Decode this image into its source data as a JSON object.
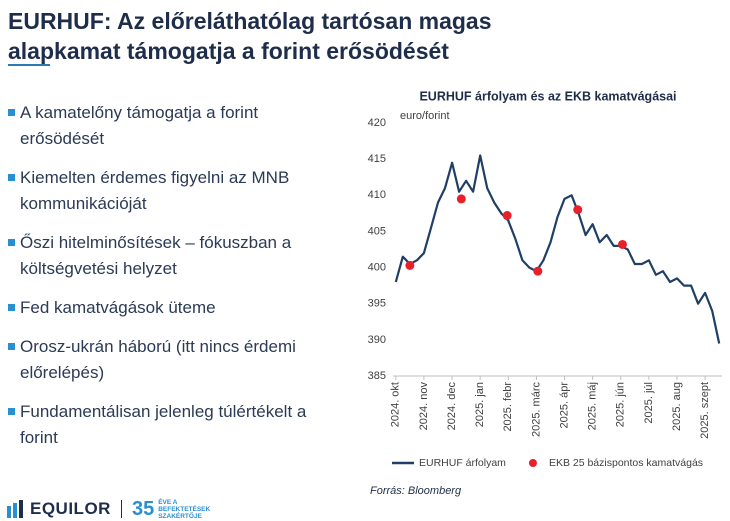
{
  "slide": {
    "title": "EURHUF: Az előreláthatólag tartósan magas alapkamat támogatja a forint erősödését",
    "bullets": [
      "A kamatelőny támogatja a forint erősödését",
      "Kiemelten érdemes figyelni az MNB kommunikációját",
      "Őszi hitelminősítések – fókuszban a költségvetési helyzet",
      "Fed kamatvágások üteme",
      "Orosz-ukrán háború (itt nincs érdemi előrelépés)",
      "Fundamentálisan jelenleg túlértékelt a forint"
    ],
    "logo": {
      "name": "EQUILOR",
      "years": "35",
      "tagline": "ÉVE A BEFEKTETÉSEK SZAKÉRTŐJE"
    }
  },
  "chart_data": {
    "type": "line",
    "title": "EURHUF árfolyam és az EKB kamatvágásai",
    "y_label": "euro/forint",
    "source": "Forrás: Bloomberg",
    "legend": "bottom",
    "grid": false,
    "xlim": [
      -0.1,
      11.6
    ],
    "xticks": [
      {
        "value": 0,
        "label": "2024. okt"
      },
      {
        "value": 1,
        "label": "2024. nov"
      },
      {
        "value": 2,
        "label": "2024. dec"
      },
      {
        "value": 3,
        "label": "2025. jan"
      },
      {
        "value": 4,
        "label": "2025. febr"
      },
      {
        "value": 5,
        "label": "2025. márc"
      },
      {
        "value": 6,
        "label": "2025. ápr"
      },
      {
        "value": 7,
        "label": "2025. máj"
      },
      {
        "value": 8,
        "label": "2025. jún"
      },
      {
        "value": 9,
        "label": "2025. júl"
      },
      {
        "value": 10,
        "label": "2025. aug"
      },
      {
        "value": 11,
        "label": "2025. szept"
      }
    ],
    "ylim": [
      385,
      420
    ],
    "yticks": [
      385,
      390,
      395,
      400,
      405,
      410,
      415,
      420
    ],
    "series": [
      {
        "name": "EURHUF árfolyam",
        "color": "#1f3f66",
        "type": "line",
        "x": [
          0,
          0.25,
          0.5,
          0.75,
          1,
          1.25,
          1.5,
          1.75,
          2,
          2.25,
          2.5,
          2.75,
          3,
          3.25,
          3.5,
          3.75,
          4,
          4.25,
          4.5,
          4.75,
          5,
          5.25,
          5.5,
          5.75,
          6,
          6.25,
          6.5,
          6.75,
          7,
          7.25,
          7.5,
          7.75,
          8,
          8.25,
          8.5,
          8.75,
          9,
          9.25,
          9.5,
          9.75,
          10,
          10.25,
          10.5,
          10.75,
          11,
          11.25,
          11.5
        ],
        "values": [
          398,
          401.5,
          400.5,
          401,
          402,
          405.5,
          409,
          411,
          414.5,
          410.5,
          412,
          410.5,
          415.5,
          411,
          409,
          407.5,
          406.5,
          404,
          401,
          400,
          399.5,
          401,
          403.5,
          407,
          409.5,
          410,
          407.5,
          404.5,
          406,
          403.5,
          404.5,
          403,
          403,
          402.5,
          400.5,
          400.5,
          401,
          399,
          399.5,
          398,
          398.5,
          397.5,
          397.5,
          395,
          396.5,
          394,
          389.5
        ]
      },
      {
        "name": "EKB 25 bázispontos kamatvágás",
        "color": "#e8202a",
        "type": "scatter",
        "x": [
          0.5,
          2.33,
          3.96,
          5.05,
          6.47,
          8.06
        ],
        "values": [
          400.3,
          409.5,
          407.2,
          399.5,
          408,
          403.2
        ]
      }
    ]
  }
}
